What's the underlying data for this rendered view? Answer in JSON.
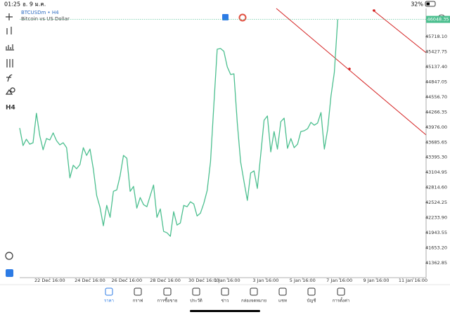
{
  "status": {
    "time": "01:25",
    "date": "อ. 9 ม.ค.",
    "battery": "32%"
  },
  "toolbar": {
    "timeframe": "H4"
  },
  "chart_data": {
    "type": "line",
    "title": "BTCUSDm • H4",
    "subtitle": "Bitcoin vs US Dollar",
    "color": "#4cbf8f",
    "x": [
      -9,
      -8,
      -7,
      -6,
      -5,
      -4,
      -3,
      -2,
      -1,
      0,
      1,
      2,
      3,
      4,
      5,
      6,
      7,
      8,
      9,
      10,
      11,
      12,
      13,
      14,
      15,
      16,
      17,
      18,
      19,
      20,
      21,
      22,
      23,
      24,
      25,
      26,
      27,
      28,
      29,
      30,
      31,
      32,
      33,
      34,
      35,
      36,
      37,
      38,
      39,
      40,
      41,
      42,
      43,
      44,
      45,
      46,
      47,
      48,
      49,
      50,
      51,
      52,
      53,
      54,
      55,
      56,
      57,
      58,
      59,
      60,
      61,
      62,
      63,
      64,
      65,
      66,
      67,
      68,
      69,
      70,
      71,
      72,
      73,
      74,
      75,
      76,
      77,
      78,
      79,
      80,
      81,
      82,
      83,
      84,
      85,
      86
    ],
    "values": [
      43959,
      43620,
      43742,
      43647,
      43674,
      44243,
      43810,
      43539,
      43756,
      43729,
      43864,
      43715,
      43634,
      43674,
      43580,
      42998,
      43241,
      43174,
      43255,
      43580,
      43431,
      43553,
      43174,
      42659,
      42429,
      42077,
      42470,
      42240,
      42740,
      42768,
      43038,
      43431,
      43377,
      42740,
      42835,
      42416,
      42619,
      42483,
      42443,
      42659,
      42862,
      42240,
      42402,
      41969,
      41942,
      41874,
      42348,
      42091,
      42131,
      42470,
      42443,
      42538,
      42497,
      42267,
      42321,
      42510,
      42754,
      43309,
      44392,
      45475,
      45488,
      45434,
      45136,
      44987,
      45001,
      44053,
      43309,
      42930,
      42565,
      43092,
      43133,
      42795,
      43444,
      44108,
      44189,
      43498,
      43891,
      43553,
      44080,
      44148,
      43566,
      43756,
      43580,
      43647,
      43891,
      43905,
      43945,
      44067,
      44013,
      44053,
      44256,
      43553,
      43932,
      44581,
      45028,
      46048
    ],
    "last_price": 46048.35,
    "xlim": [
      -9,
      112.4
    ],
    "xticks": [
      {
        "value": 0,
        "label": "22 Dec 16:00"
      },
      {
        "value": 12,
        "label": "24 Dec 16:00"
      },
      {
        "value": 23,
        "label": "26 Dec 16:00"
      },
      {
        "value": 34.5,
        "label": "28 Dec 16:00"
      },
      {
        "value": 46,
        "label": "30 Dec 16:00"
      },
      {
        "value": 53,
        "label": "1 Jan 16:00"
      },
      {
        "value": 64.5,
        "label": "3 Jan 16:00"
      },
      {
        "value": 75.5,
        "label": "5 Jan 16:00"
      },
      {
        "value": 86.5,
        "label": "7 Jan 16:00"
      },
      {
        "value": 97.5,
        "label": "9 Jan 16:00"
      },
      {
        "value": 108.5,
        "label": "11 Jan 16:00"
      }
    ],
    "ylim": [
      41079,
      46286
    ],
    "yticks": [
      {
        "value": 45718.1,
        "label": "45718.10"
      },
      45427.75,
      {
        "value": 45137.4,
        "label": "45137.40"
      },
      44847.05,
      {
        "value": 44556.7,
        "label": "44556.70"
      },
      44266.35,
      {
        "value": 43976,
        "label": "43976.00"
      },
      43685.65,
      {
        "value": 43395.3,
        "label": "43395.30"
      },
      43104.95,
      {
        "value": 42814.6,
        "label": "42814.60"
      },
      42524.25,
      {
        "value": 42233.9,
        "label": "42233.90"
      },
      41943.55,
      {
        "value": 41653.2,
        "label": "41653.20"
      },
      41362.85
    ]
  },
  "nav": [
    "ราคา",
    "กราฟ",
    "การซื้อขาย",
    "ประวัติ",
    "ข่าว",
    "กล่องจดหมาย",
    "แชท",
    "บัญชี",
    "การตั้งค่า"
  ]
}
